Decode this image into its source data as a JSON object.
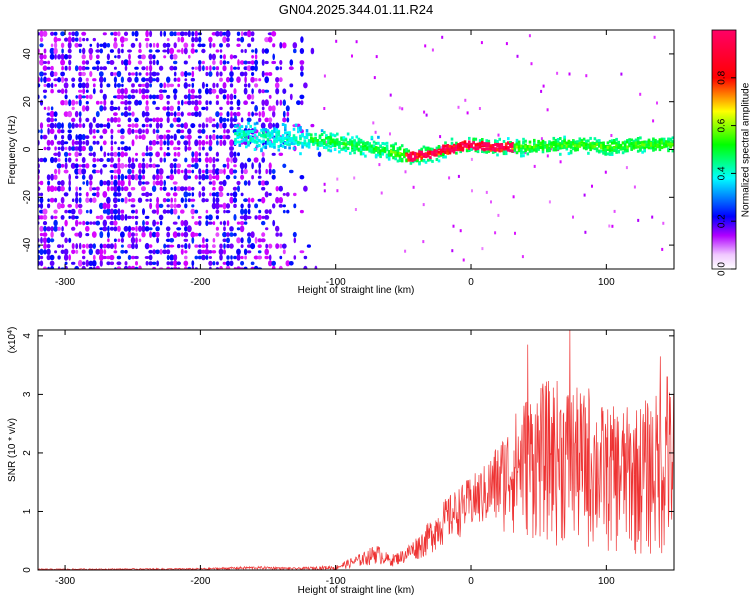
{
  "title": "GN04.2025.344.01.11.R24",
  "chart_data": [
    {
      "type": "heatmap",
      "name": "spectrogram",
      "xlabel": "Height of straight line (km)",
      "ylabel": "Frequency (Hz)",
      "xlim": [
        -320,
        150
      ],
      "ylim": [
        -50,
        50
      ],
      "xticks": [
        -300,
        -200,
        -100,
        0,
        100
      ],
      "yticks": [
        -40,
        -20,
        0,
        20,
        40
      ],
      "colorbar": {
        "label": "Normalized spectral amplitude",
        "range": [
          0.0,
          1.0
        ],
        "ticks": [
          "0.0",
          "0.2",
          "0.4",
          "0.6",
          "0.8"
        ],
        "tick_values": [
          0.0,
          0.2,
          0.4,
          0.6,
          0.8
        ],
        "colormap": [
          "#ffffff",
          "#d900ff",
          "#0000ff",
          "#00ffff",
          "#00ff00",
          "#ffff00",
          "#ff0000",
          "#ff0066"
        ]
      },
      "noise_region_x": [
        -320,
        -175
      ],
      "signal_center": [
        {
          "x": -175,
          "y": 6
        },
        {
          "x": -150,
          "y": 5
        },
        {
          "x": -120,
          "y": 4
        },
        {
          "x": -100,
          "y": 3
        },
        {
          "x": -80,
          "y": 1
        },
        {
          "x": -60,
          "y": -1
        },
        {
          "x": -45,
          "y": -3
        },
        {
          "x": -30,
          "y": -2
        },
        {
          "x": -20,
          "y": 0
        },
        {
          "x": -10,
          "y": 1
        },
        {
          "x": 0,
          "y": 2
        },
        {
          "x": 20,
          "y": 1
        },
        {
          "x": 40,
          "y": 1
        },
        {
          "x": 60,
          "y": 2
        },
        {
          "x": 80,
          "y": 2
        },
        {
          "x": 100,
          "y": 1
        },
        {
          "x": 120,
          "y": 2
        },
        {
          "x": 150,
          "y": 2
        }
      ],
      "peak_region_x": [
        -50,
        30
      ]
    },
    {
      "type": "line",
      "name": "snr",
      "xlabel": "Height of straight line (km)",
      "ylabel": "SNR (10 * v/v)",
      "scale_label": "(x10",
      "scale_exponent": "4",
      "scale_suffix": ")",
      "xlim": [
        -320,
        150
      ],
      "ylim": [
        0,
        4.1
      ],
      "xticks": [
        -300,
        -200,
        -100,
        0,
        100
      ],
      "yticks": [
        0,
        1,
        2,
        3,
        4
      ],
      "color": "#ee3333",
      "envelope": [
        {
          "x": -320,
          "lo": 0.0,
          "hi": 0.02
        },
        {
          "x": -200,
          "lo": 0.0,
          "hi": 0.03
        },
        {
          "x": -165,
          "lo": 0.01,
          "hi": 0.06
        },
        {
          "x": -150,
          "lo": 0.01,
          "hi": 0.06
        },
        {
          "x": -130,
          "lo": 0.0,
          "hi": 0.04
        },
        {
          "x": -100,
          "lo": 0.0,
          "hi": 0.08
        },
        {
          "x": -80,
          "lo": 0.05,
          "hi": 0.3
        },
        {
          "x": -70,
          "lo": 0.1,
          "hi": 0.45
        },
        {
          "x": -60,
          "lo": 0.05,
          "hi": 0.25
        },
        {
          "x": -50,
          "lo": 0.1,
          "hi": 0.35
        },
        {
          "x": -35,
          "lo": 0.2,
          "hi": 0.7
        },
        {
          "x": -20,
          "lo": 0.4,
          "hi": 1.2
        },
        {
          "x": -5,
          "lo": 0.6,
          "hi": 1.5
        },
        {
          "x": 10,
          "lo": 0.7,
          "hi": 1.8
        },
        {
          "x": 25,
          "lo": 0.6,
          "hi": 2.4
        },
        {
          "x": 40,
          "lo": 0.5,
          "hi": 3.0
        },
        {
          "x": 60,
          "lo": 0.4,
          "hi": 3.3
        },
        {
          "x": 80,
          "lo": 0.3,
          "hi": 3.1
        },
        {
          "x": 100,
          "lo": 0.25,
          "hi": 2.8
        },
        {
          "x": 120,
          "lo": 0.2,
          "hi": 2.8
        },
        {
          "x": 135,
          "lo": 0.15,
          "hi": 3.0
        },
        {
          "x": 150,
          "lo": 0.15,
          "hi": 3.2
        }
      ],
      "spikes": [
        {
          "x": 42,
          "y": 3.85
        },
        {
          "x": 73,
          "y": 4.1
        },
        {
          "x": 87,
          "y": 3.1
        },
        {
          "x": 140,
          "y": 3.65
        },
        {
          "x": 145,
          "y": 3.3
        }
      ]
    }
  ]
}
